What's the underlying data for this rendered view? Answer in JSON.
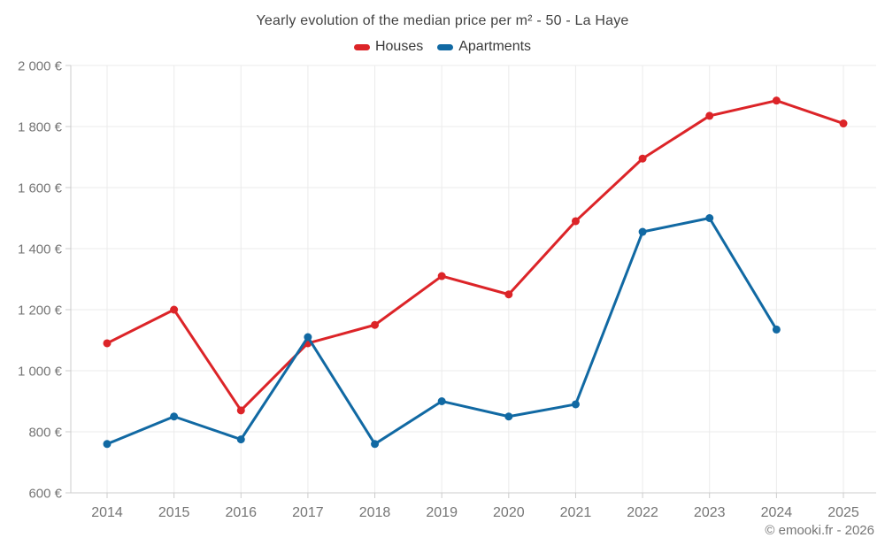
{
  "chart": {
    "title": "Yearly evolution of the median price per m² - 50 - La Haye",
    "footer": "© emooki.fr - 2026"
  },
  "chart_data": {
    "type": "line",
    "title": "Yearly evolution of the median price per m² - 50 - La Haye",
    "categories": [
      "2014",
      "2015",
      "2016",
      "2017",
      "2018",
      "2019",
      "2020",
      "2021",
      "2022",
      "2023",
      "2024",
      "2025"
    ],
    "series": [
      {
        "name": "Houses",
        "color": "#dc2428",
        "values": [
          1090,
          1200,
          870,
          1090,
          1150,
          1310,
          1250,
          1490,
          1695,
          1835,
          1885,
          1810
        ]
      },
      {
        "name": "Apartments",
        "color": "#1169a3",
        "values": [
          760,
          850,
          775,
          1110,
          760,
          900,
          850,
          890,
          1455,
          1500,
          1135,
          null
        ]
      }
    ],
    "xlabel": "",
    "ylabel": "",
    "ylim": [
      600,
      2000
    ],
    "ytick_step": 200,
    "ytick_labels": [
      "600 €",
      "800 €",
      "1 000 €",
      "1 200 €",
      "1 400 €",
      "1 600 €",
      "1 800 €",
      "2 000 €"
    ],
    "grid": true,
    "legend_position": "top",
    "marker": "circle"
  },
  "colors": {
    "axis_text": "#757575",
    "grid_line": "#ebebeb",
    "axis_line": "#cccccc"
  }
}
